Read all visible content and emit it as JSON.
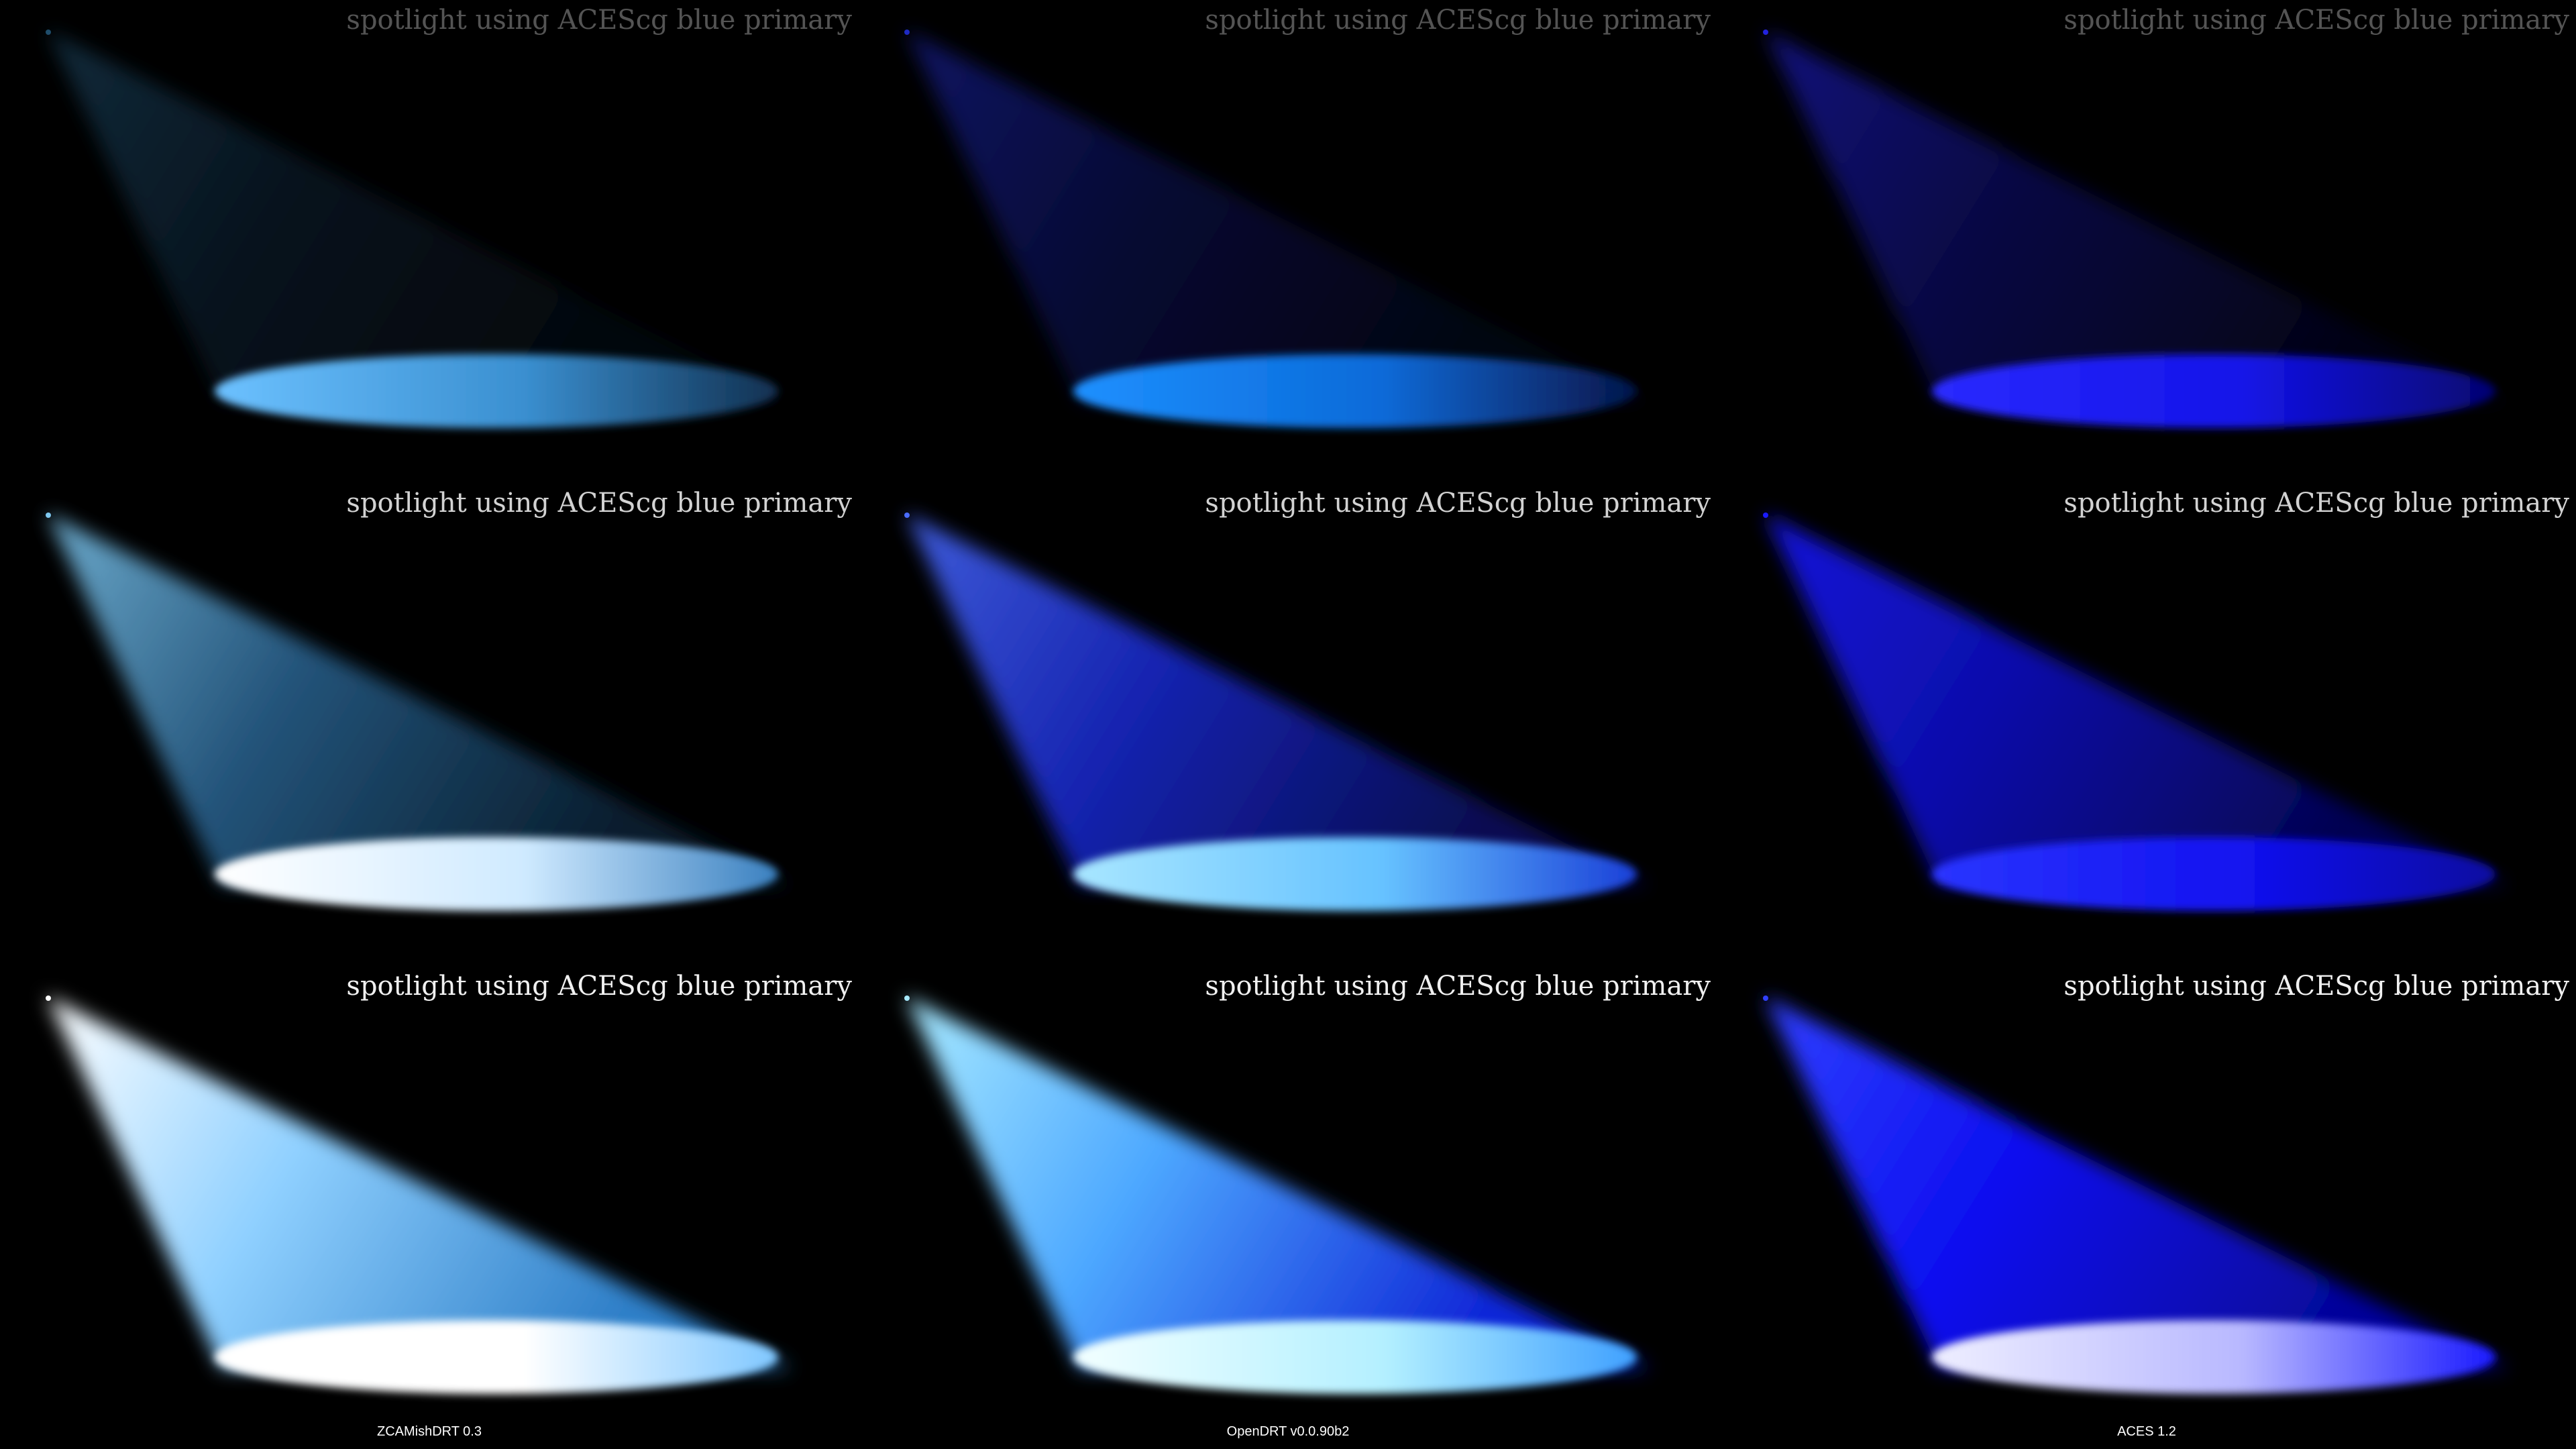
{
  "caption_text": "spotlight using ACEScg blue primary",
  "exposure_rows": [
    {
      "caption_opacity": 0.35
    },
    {
      "caption_opacity": 0.88
    },
    {
      "caption_opacity": 1.0
    }
  ],
  "renderers": [
    {
      "label": "ZCAMishDRT 0.3"
    },
    {
      "label": "OpenDRT v0.0.90b2"
    },
    {
      "label": "ACES 1.2"
    }
  ],
  "panels": [
    [
      {
        "beam": [
          "#1f4d6b",
          "#0c2234",
          "#050d15"
        ],
        "pool": [
          "#6cc1ff",
          "#3a8fd0",
          "#113050"
        ],
        "beam_opacity": 0.55
      },
      {
        "beam": [
          "#1e2ac4",
          "#0d1466",
          "#040820"
        ],
        "pool": [
          "#1e90ff",
          "#0a6ad8",
          "#06154a"
        ],
        "beam_opacity": 0.5
      },
      {
        "beam": [
          "#2222e0",
          "#10107a",
          "#050528"
        ],
        "pool": [
          "#2a2aff",
          "#1414e8",
          "#050570"
        ],
        "beam_opacity": 0.55
      }
    ],
    [
      {
        "beam": [
          "#7fc8f0",
          "#2a6390",
          "#0a2236"
        ],
        "pool": [
          "#ffffff",
          "#cfeaff",
          "#3a80c0"
        ],
        "beam_opacity": 0.85
      },
      {
        "beam": [
          "#4a6cff",
          "#1a2ad0",
          "#081060"
        ],
        "pool": [
          "#a8e6ff",
          "#66c2ff",
          "#1a40d8"
        ],
        "beam_opacity": 0.85
      },
      {
        "beam": [
          "#1a1aff",
          "#0f10c8",
          "#050560"
        ],
        "pool": [
          "#2a35ff",
          "#1212f0",
          "#0808a0"
        ],
        "beam_opacity": 0.85
      }
    ],
    [
      {
        "beam": [
          "#ffffff",
          "#8fd0ff",
          "#2f7fc8"
        ],
        "pool": [
          "#ffffff",
          "#ffffff",
          "#7fc7ff"
        ],
        "beam_opacity": 1.0
      },
      {
        "beam": [
          "#a8eaff",
          "#4da8ff",
          "#1028d8"
        ],
        "pool": [
          "#f2ffff",
          "#b4f0ff",
          "#3fa0ff"
        ],
        "beam_opacity": 1.0
      },
      {
        "beam": [
          "#3040ff",
          "#0c10f0",
          "#06069a"
        ],
        "pool": [
          "#eeeeff",
          "#b8b8ff",
          "#1a1aff"
        ],
        "beam_opacity": 1.0
      }
    ]
  ]
}
